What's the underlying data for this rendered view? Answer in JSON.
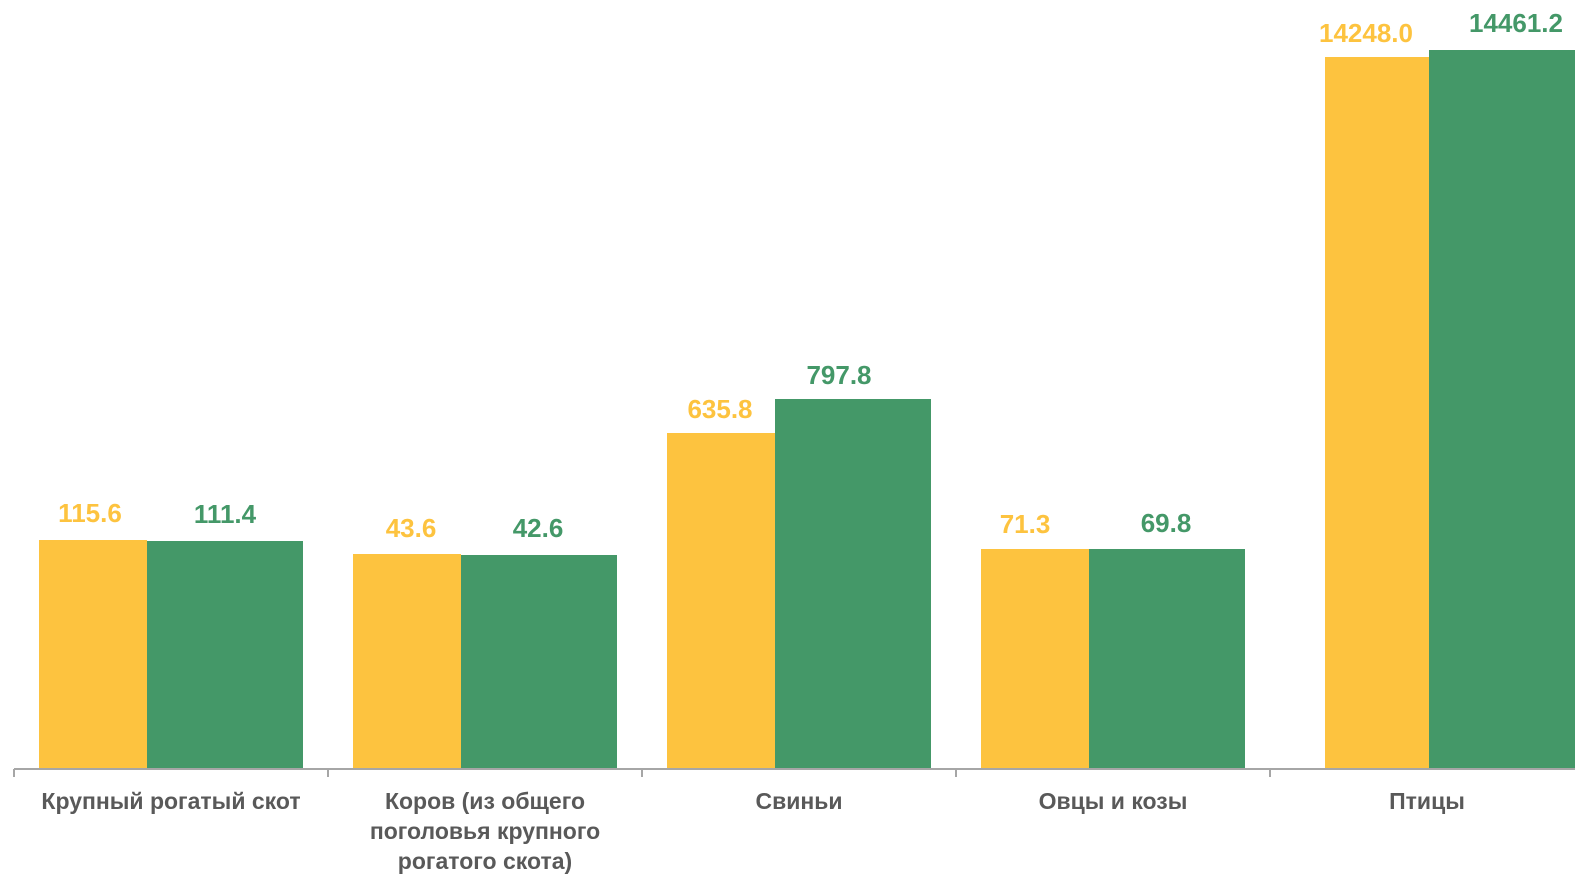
{
  "chart_data": {
    "type": "bar",
    "categories": [
      "Крупный рогатый скот",
      "Коров (из общего поголовья крупного рогатого скота)",
      "Свиньи",
      "Овцы и козы",
      "Птицы"
    ],
    "category_lines": [
      [
        "Крупный рогатый скот"
      ],
      [
        "Коров (из общего",
        "поголовья крупного",
        "рогатого скота)"
      ],
      [
        "Свиньи"
      ],
      [
        "Овцы и козы"
      ],
      [
        "Птицы"
      ]
    ],
    "series": [
      {
        "color": "#FDC33F",
        "values": [
          115.6,
          43.6,
          635.8,
          71.3,
          14248.0
        ],
        "labels": [
          "115.6",
          "43.6",
          "635.8",
          "71.3",
          "14248.0"
        ]
      },
      {
        "color": "#449868",
        "values": [
          111.4,
          42.6,
          797.8,
          69.8,
          14461.2
        ],
        "labels": [
          "111.4",
          "42.6",
          "797.8",
          "69.8",
          "14461.2"
        ]
      }
    ],
    "axis_color": "#A6A6A6",
    "category_label_color": "#595959",
    "grid": false,
    "legend": "none"
  }
}
